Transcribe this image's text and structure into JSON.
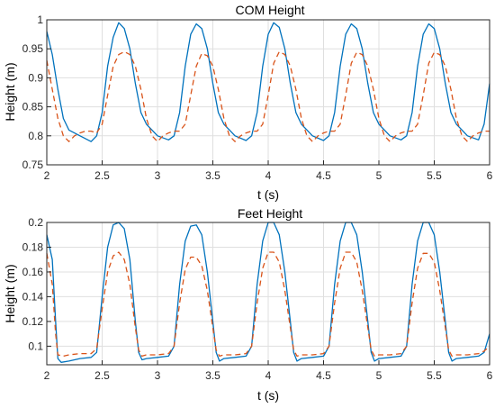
{
  "chart_data": [
    {
      "type": "line",
      "title": "COM Height",
      "xlabel": "t (s)",
      "ylabel": "Height (m)",
      "xlim": [
        2,
        6
      ],
      "ylim": [
        0.75,
        1.0
      ],
      "xticks": [
        "2",
        "2.5",
        "3",
        "3.5",
        "4",
        "4.5",
        "5",
        "5.5",
        "6"
      ],
      "yticks": [
        "0.75",
        "0.8",
        "0.85",
        "0.9",
        "0.95",
        "1"
      ],
      "grid": true,
      "series": [
        {
          "color": "#0072BD",
          "dash": "solid",
          "x": [
            2.0,
            2.05,
            2.1,
            2.15,
            2.2,
            2.3,
            2.4,
            2.45,
            2.5,
            2.55,
            2.6,
            2.65,
            2.7,
            2.75,
            2.8,
            2.85,
            2.9,
            3.0,
            3.1,
            3.15,
            3.2,
            3.25,
            3.3,
            3.35,
            3.4,
            3.45,
            3.5,
            3.55,
            3.6,
            3.7,
            3.8,
            3.85,
            3.9,
            3.95,
            4.0,
            4.05,
            4.1,
            4.15,
            4.2,
            4.25,
            4.3,
            4.4,
            4.5,
            4.55,
            4.6,
            4.65,
            4.7,
            4.75,
            4.8,
            4.85,
            4.9,
            4.95,
            5.0,
            5.1,
            5.2,
            5.25,
            5.3,
            5.35,
            5.4,
            5.45,
            5.5,
            5.55,
            5.6,
            5.65,
            5.7,
            5.8,
            5.9,
            5.95,
            6.0
          ],
          "y": [
            0.98,
            0.94,
            0.88,
            0.83,
            0.81,
            0.8,
            0.79,
            0.8,
            0.84,
            0.92,
            0.97,
            0.995,
            0.985,
            0.95,
            0.89,
            0.84,
            0.82,
            0.8,
            0.793,
            0.8,
            0.84,
            0.92,
            0.975,
            0.993,
            0.985,
            0.95,
            0.89,
            0.84,
            0.82,
            0.8,
            0.792,
            0.8,
            0.84,
            0.92,
            0.975,
            0.995,
            0.987,
            0.95,
            0.89,
            0.84,
            0.82,
            0.8,
            0.792,
            0.8,
            0.84,
            0.92,
            0.975,
            0.993,
            0.985,
            0.95,
            0.89,
            0.84,
            0.82,
            0.8,
            0.793,
            0.8,
            0.84,
            0.92,
            0.975,
            0.993,
            0.985,
            0.95,
            0.89,
            0.84,
            0.82,
            0.8,
            0.793,
            0.82,
            0.89
          ]
        },
        {
          "color": "#D95319",
          "dash": "dashed",
          "x": [
            2.0,
            2.05,
            2.1,
            2.15,
            2.2,
            2.25,
            2.3,
            2.35,
            2.4,
            2.45,
            2.5,
            2.55,
            2.6,
            2.65,
            2.7,
            2.75,
            2.8,
            2.85,
            2.9,
            2.95,
            3.0,
            3.05,
            3.1,
            3.15,
            3.2,
            3.25,
            3.3,
            3.35,
            3.4,
            3.45,
            3.5,
            3.55,
            3.6,
            3.65,
            3.7,
            3.75,
            3.8,
            3.85,
            3.9,
            3.95,
            4.0,
            4.05,
            4.1,
            4.15,
            4.2,
            4.25,
            4.3,
            4.35,
            4.4,
            4.45,
            4.5,
            4.55,
            4.6,
            4.65,
            4.7,
            4.75,
            4.8,
            4.85,
            4.9,
            4.95,
            5.0,
            5.05,
            5.1,
            5.15,
            5.2,
            5.25,
            5.3,
            5.35,
            5.4,
            5.45,
            5.5,
            5.55,
            5.6,
            5.65,
            5.7,
            5.75,
            5.8,
            5.85,
            5.9,
            5.95,
            6.0
          ],
          "y": [
            0.93,
            0.88,
            0.83,
            0.8,
            0.79,
            0.8,
            0.805,
            0.808,
            0.808,
            0.805,
            0.82,
            0.87,
            0.92,
            0.94,
            0.945,
            0.94,
            0.92,
            0.88,
            0.83,
            0.8,
            0.79,
            0.8,
            0.805,
            0.808,
            0.808,
            0.82,
            0.87,
            0.92,
            0.942,
            0.938,
            0.92,
            0.88,
            0.83,
            0.8,
            0.79,
            0.8,
            0.805,
            0.808,
            0.808,
            0.82,
            0.87,
            0.925,
            0.945,
            0.94,
            0.92,
            0.88,
            0.83,
            0.8,
            0.79,
            0.8,
            0.805,
            0.808,
            0.808,
            0.82,
            0.87,
            0.925,
            0.944,
            0.94,
            0.92,
            0.88,
            0.83,
            0.8,
            0.79,
            0.8,
            0.805,
            0.808,
            0.808,
            0.82,
            0.87,
            0.925,
            0.944,
            0.94,
            0.92,
            0.88,
            0.83,
            0.8,
            0.79,
            0.8,
            0.805,
            0.808,
            0.808
          ]
        }
      ]
    },
    {
      "type": "line",
      "title": "Feet Height",
      "xlabel": "t (s)",
      "ylabel": "Height (m)",
      "xlim": [
        2,
        6
      ],
      "ylim": [
        0.085,
        0.2
      ],
      "xticks": [
        "2",
        "2.5",
        "3",
        "3.5",
        "4",
        "4.5",
        "5",
        "5.5",
        "6"
      ],
      "yticks": [
        "0.1",
        "0.12",
        "0.14",
        "0.16",
        "0.18",
        "0.2"
      ],
      "grid": true,
      "series": [
        {
          "color": "#0072BD",
          "dash": "solid",
          "x": [
            2.0,
            2.05,
            2.08,
            2.1,
            2.13,
            2.2,
            2.3,
            2.4,
            2.45,
            2.5,
            2.55,
            2.6,
            2.65,
            2.7,
            2.75,
            2.8,
            2.83,
            2.86,
            2.9,
            3.0,
            3.1,
            3.15,
            3.2,
            3.25,
            3.3,
            3.35,
            3.4,
            3.45,
            3.5,
            3.53,
            3.56,
            3.6,
            3.7,
            3.8,
            3.85,
            3.9,
            3.95,
            4.0,
            4.05,
            4.1,
            4.15,
            4.2,
            4.23,
            4.26,
            4.3,
            4.4,
            4.5,
            4.55,
            4.6,
            4.65,
            4.7,
            4.75,
            4.8,
            4.85,
            4.9,
            4.93,
            4.96,
            5.0,
            5.1,
            5.2,
            5.25,
            5.3,
            5.35,
            5.4,
            5.45,
            5.5,
            5.55,
            5.6,
            5.63,
            5.66,
            5.7,
            5.8,
            5.9,
            5.95,
            6.0
          ],
          "y": [
            0.19,
            0.17,
            0.12,
            0.09,
            0.087,
            0.088,
            0.09,
            0.091,
            0.095,
            0.14,
            0.18,
            0.198,
            0.2,
            0.195,
            0.17,
            0.12,
            0.095,
            0.089,
            0.09,
            0.091,
            0.092,
            0.1,
            0.15,
            0.185,
            0.197,
            0.198,
            0.19,
            0.16,
            0.12,
            0.095,
            0.088,
            0.09,
            0.091,
            0.092,
            0.1,
            0.15,
            0.185,
            0.2,
            0.2,
            0.19,
            0.16,
            0.12,
            0.095,
            0.088,
            0.09,
            0.091,
            0.092,
            0.1,
            0.15,
            0.185,
            0.2,
            0.2,
            0.19,
            0.16,
            0.12,
            0.095,
            0.088,
            0.09,
            0.091,
            0.092,
            0.1,
            0.15,
            0.185,
            0.2,
            0.2,
            0.19,
            0.16,
            0.12,
            0.095,
            0.088,
            0.09,
            0.091,
            0.092,
            0.095,
            0.11
          ]
        },
        {
          "color": "#D95319",
          "dash": "dashed",
          "x": [
            2.0,
            2.05,
            2.08,
            2.1,
            2.15,
            2.2,
            2.3,
            2.4,
            2.45,
            2.5,
            2.55,
            2.6,
            2.65,
            2.7,
            2.75,
            2.8,
            2.83,
            2.86,
            2.9,
            3.0,
            3.1,
            3.15,
            3.2,
            3.25,
            3.3,
            3.35,
            3.4,
            3.45,
            3.5,
            3.53,
            3.56,
            3.6,
            3.7,
            3.8,
            3.85,
            3.9,
            3.95,
            4.0,
            4.05,
            4.1,
            4.15,
            4.2,
            4.23,
            4.26,
            4.3,
            4.4,
            4.5,
            4.55,
            4.6,
            4.65,
            4.7,
            4.75,
            4.8,
            4.85,
            4.9,
            4.93,
            4.96,
            5.0,
            5.1,
            5.2,
            5.25,
            5.3,
            5.35,
            5.4,
            5.45,
            5.5,
            5.55,
            5.6,
            5.63,
            5.66,
            5.7,
            5.8,
            5.9,
            5.95,
            6.0
          ],
          "y": [
            0.175,
            0.15,
            0.11,
            0.093,
            0.092,
            0.093,
            0.094,
            0.094,
            0.098,
            0.13,
            0.16,
            0.173,
            0.176,
            0.17,
            0.15,
            0.115,
            0.097,
            0.092,
            0.093,
            0.093,
            0.094,
            0.1,
            0.135,
            0.162,
            0.172,
            0.172,
            0.165,
            0.145,
            0.115,
            0.097,
            0.092,
            0.093,
            0.093,
            0.094,
            0.1,
            0.135,
            0.163,
            0.176,
            0.176,
            0.168,
            0.145,
            0.115,
            0.097,
            0.092,
            0.093,
            0.093,
            0.094,
            0.1,
            0.135,
            0.163,
            0.176,
            0.176,
            0.168,
            0.145,
            0.115,
            0.097,
            0.092,
            0.093,
            0.093,
            0.094,
            0.1,
            0.135,
            0.163,
            0.175,
            0.175,
            0.168,
            0.145,
            0.115,
            0.097,
            0.092,
            0.093,
            0.093,
            0.094,
            0.096,
            0.1
          ]
        }
      ]
    }
  ]
}
